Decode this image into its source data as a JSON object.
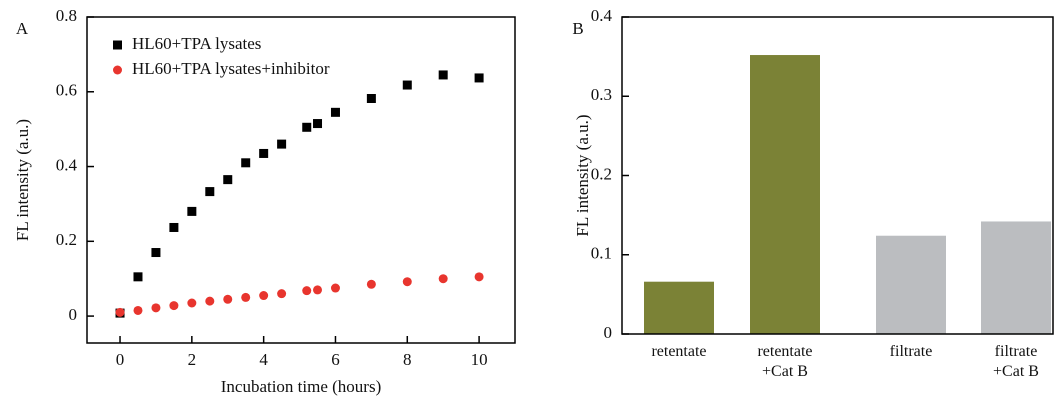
{
  "chart_data": [
    {
      "type": "scatter",
      "panel_label": "A",
      "x_label": "Incubation time (hours)",
      "y_label": "FL intensity (a.u.)",
      "xlim": [
        -0.92,
        11
      ],
      "ylim": [
        -0.072,
        0.8
      ],
      "xticks": [
        0,
        2,
        4,
        6,
        8,
        10
      ],
      "yticks": [
        0,
        0.2,
        0.4,
        0.6,
        0.8
      ],
      "legend": "upper left",
      "x": [
        0,
        0.5,
        1,
        1.5,
        2,
        2.5,
        3,
        3.5,
        4,
        4.5,
        5.2,
        5.5,
        6,
        7,
        8,
        9,
        10
      ],
      "series": [
        {
          "name": "HL60+TPA lysates",
          "color": "#000000",
          "marker": "square",
          "values": [
            0.008,
            0.105,
            0.17,
            0.237,
            0.28,
            0.333,
            0.365,
            0.41,
            0.435,
            0.46,
            0.505,
            0.515,
            0.545,
            0.582,
            0.618,
            0.645,
            0.637
          ]
        },
        {
          "name": "HL60+TPA lysates+inhibitor",
          "color": "#e8352e",
          "marker": "circle",
          "values": [
            0.01,
            0.015,
            0.022,
            0.028,
            0.035,
            0.04,
            0.045,
            0.05,
            0.055,
            0.06,
            0.068,
            0.07,
            0.075,
            0.085,
            0.092,
            0.1,
            0.105
          ]
        }
      ]
    },
    {
      "type": "bar",
      "panel_label": "B",
      "y_label": "FL intensity (a.u.)",
      "ylim": [
        0,
        0.4
      ],
      "yticks": [
        0,
        0.1,
        0.2,
        0.3,
        0.4
      ],
      "categories": [
        "retentate",
        "retentate\n+Cat B",
        "filtrate",
        "filtrate\n+Cat B"
      ],
      "values": [
        0.066,
        0.352,
        0.124,
        0.142
      ],
      "colors": [
        "#7b8236",
        "#7b8236",
        "#bbbdc0",
        "#bbbdc0"
      ]
    }
  ]
}
